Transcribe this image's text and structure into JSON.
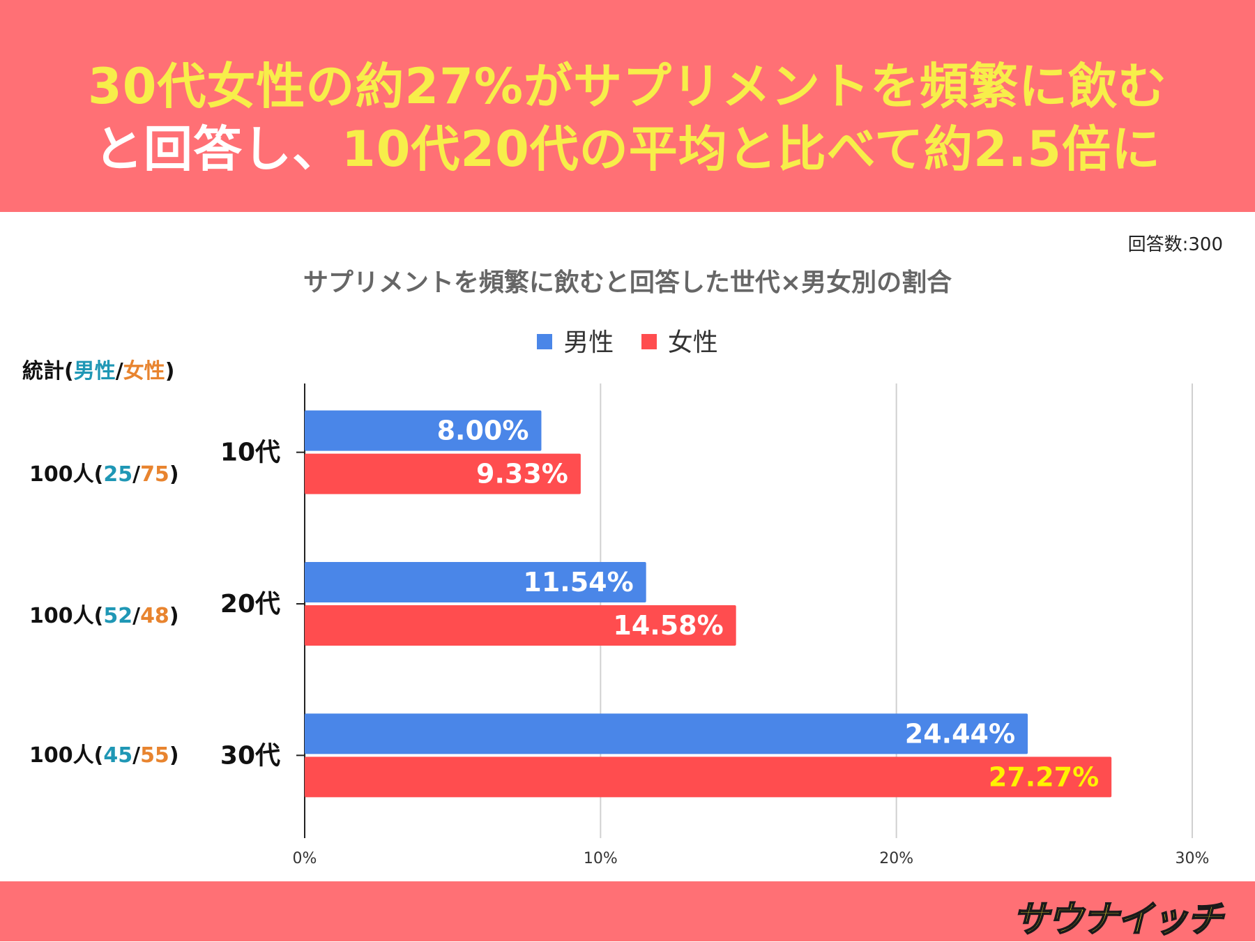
{
  "header": {
    "line1": "30代女性の約27%がサプリメントを頻繁に飲む",
    "line2_white": "と回答し、",
    "line2_yellow": "10代20代の平均と比べて約2.5倍に"
  },
  "respondents_note": "回答数:300",
  "stats": {
    "label": "統計",
    "open": "(",
    "male": "男性",
    "sep": "/",
    "female": "女性",
    "close": ")",
    "rows": [
      {
        "total": "100人",
        "male": "25",
        "female": "75"
      },
      {
        "total": "100人",
        "male": "52",
        "female": "48"
      },
      {
        "total": "100人",
        "male": "45",
        "female": "55"
      }
    ]
  },
  "chart_data": {
    "type": "bar",
    "orientation": "horizontal",
    "title": "サプリメントを頻繁に飲むと回答した世代×男女別の割合",
    "categories": [
      "10代",
      "20代",
      "30代"
    ],
    "series": [
      {
        "name": "男性",
        "color": "#4a86e8",
        "values": [
          8.0,
          11.54,
          24.44
        ],
        "labels": [
          "8.00%",
          "11.54%",
          "24.44%"
        ]
      },
      {
        "name": "女性",
        "color": "#ff4d4f",
        "values": [
          9.33,
          14.58,
          27.27
        ],
        "labels": [
          "9.33%",
          "14.58%",
          "27.27%"
        ]
      }
    ],
    "xlim": [
      0,
      30
    ],
    "xticks": [
      "0%",
      "10%",
      "20%",
      "30%"
    ],
    "grid": true,
    "legend": "top-center",
    "highlight_label_color": "#fff200"
  },
  "footer": {
    "logo": "サウナイッチ"
  }
}
